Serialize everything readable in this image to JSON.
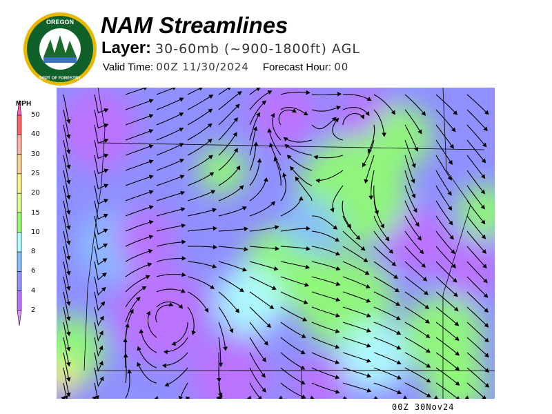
{
  "logo": {
    "text": "OREGON DEPARTMENT OF FORESTRY"
  },
  "header": {
    "title": "NAM Streamlines",
    "layer_label": "Layer:",
    "layer_value": "30-60mb (~900-1800ft) AGL",
    "valid_label": "Valid Time:",
    "valid_value": "00Z 11/30/2024",
    "forecast_label": "Forecast Hour:",
    "forecast_value": "00"
  },
  "legend": {
    "unit": "MPH",
    "ticks": [
      "50",
      "40",
      "30",
      "25",
      "20",
      "15",
      "10",
      "8",
      "6",
      "4",
      "2"
    ],
    "colors": [
      "#ff6060",
      "#ffb0a0",
      "#ffd090",
      "#fff088",
      "#d8ff90",
      "#90ff70",
      "#b0ffff",
      "#88c0ff",
      "#9090ff",
      "#c070ff"
    ],
    "over_color": "#ff60c0",
    "under_color": "#e890ff"
  },
  "footer": {
    "stamp": "00Z 30Nov24"
  }
}
